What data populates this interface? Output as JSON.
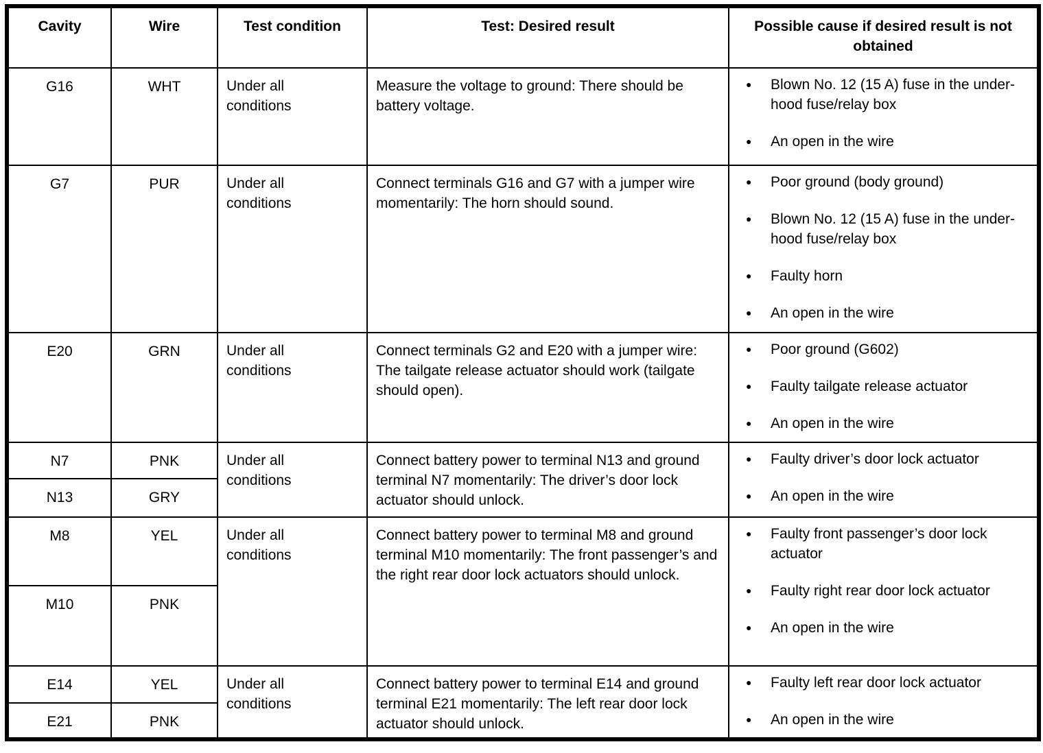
{
  "table": {
    "columns": [
      "Cavity",
      "Wire",
      "Test condition",
      "Test: Desired result",
      "Possible cause if desired result is not obtained"
    ],
    "rows": [
      {
        "entries": [
          {
            "cavity": "G16",
            "wire": "WHT"
          }
        ],
        "condition": "Under all conditions",
        "test": "Measure the voltage to ground: There should be battery voltage.",
        "causes": [
          "Blown No. 12 (15 A) fuse in the under-hood fuse/relay box",
          "An open in the wire"
        ]
      },
      {
        "entries": [
          {
            "cavity": "G7",
            "wire": "PUR"
          }
        ],
        "condition": "Under all conditions",
        "test": "Connect terminals G16 and G7 with a jumper wire momentarily: The horn should sound.",
        "causes": [
          "Poor ground (body ground)",
          "Blown No. 12 (15 A) fuse in the under-hood fuse/relay box",
          "Faulty horn",
          "An open in the wire"
        ]
      },
      {
        "entries": [
          {
            "cavity": "E20",
            "wire": "GRN"
          }
        ],
        "condition": "Under all conditions",
        "test": "Connect terminals G2 and E20 with a jumper wire: The tailgate release actuator should work (tailgate should open).",
        "causes": [
          "Poor ground (G602)",
          "Faulty tailgate release actuator",
          "An open in the wire"
        ]
      },
      {
        "entries": [
          {
            "cavity": "N7",
            "wire": "PNK"
          },
          {
            "cavity": "N13",
            "wire": "GRY"
          }
        ],
        "condition": "Under all conditions",
        "test": "Connect battery power to terminal N13 and ground terminal N7 momentarily: The driver’s door lock actuator should unlock.",
        "causes": [
          "Faulty driver’s door lock actuator",
          "An open in the wire"
        ]
      },
      {
        "entries": [
          {
            "cavity": "M8",
            "wire": "YEL"
          },
          {
            "cavity": "M10",
            "wire": "PNK"
          }
        ],
        "condition": "Under all conditions",
        "test": "Connect battery power to terminal M8 and ground terminal M10 momentarily: The front passenger’s and the right rear door lock actuators should unlock.",
        "causes": [
          "Faulty front passenger’s door lock actuator",
          "Faulty right rear door lock actuator",
          "An open in the wire"
        ]
      },
      {
        "entries": [
          {
            "cavity": "E14",
            "wire": "YEL"
          },
          {
            "cavity": "E21",
            "wire": "PNK"
          }
        ],
        "condition": "Under all conditions",
        "test": "Connect battery power to terminal E14 and ground terminal E21 momentarily: The left rear door lock actuator should unlock.",
        "causes": [
          "Faulty left rear door lock actuator",
          "An open in the wire"
        ]
      }
    ]
  },
  "icons": {
    "bullet_glyph": "●"
  },
  "colors": {
    "border": "#000000",
    "background": "#ffffff",
    "text": "#000000"
  }
}
